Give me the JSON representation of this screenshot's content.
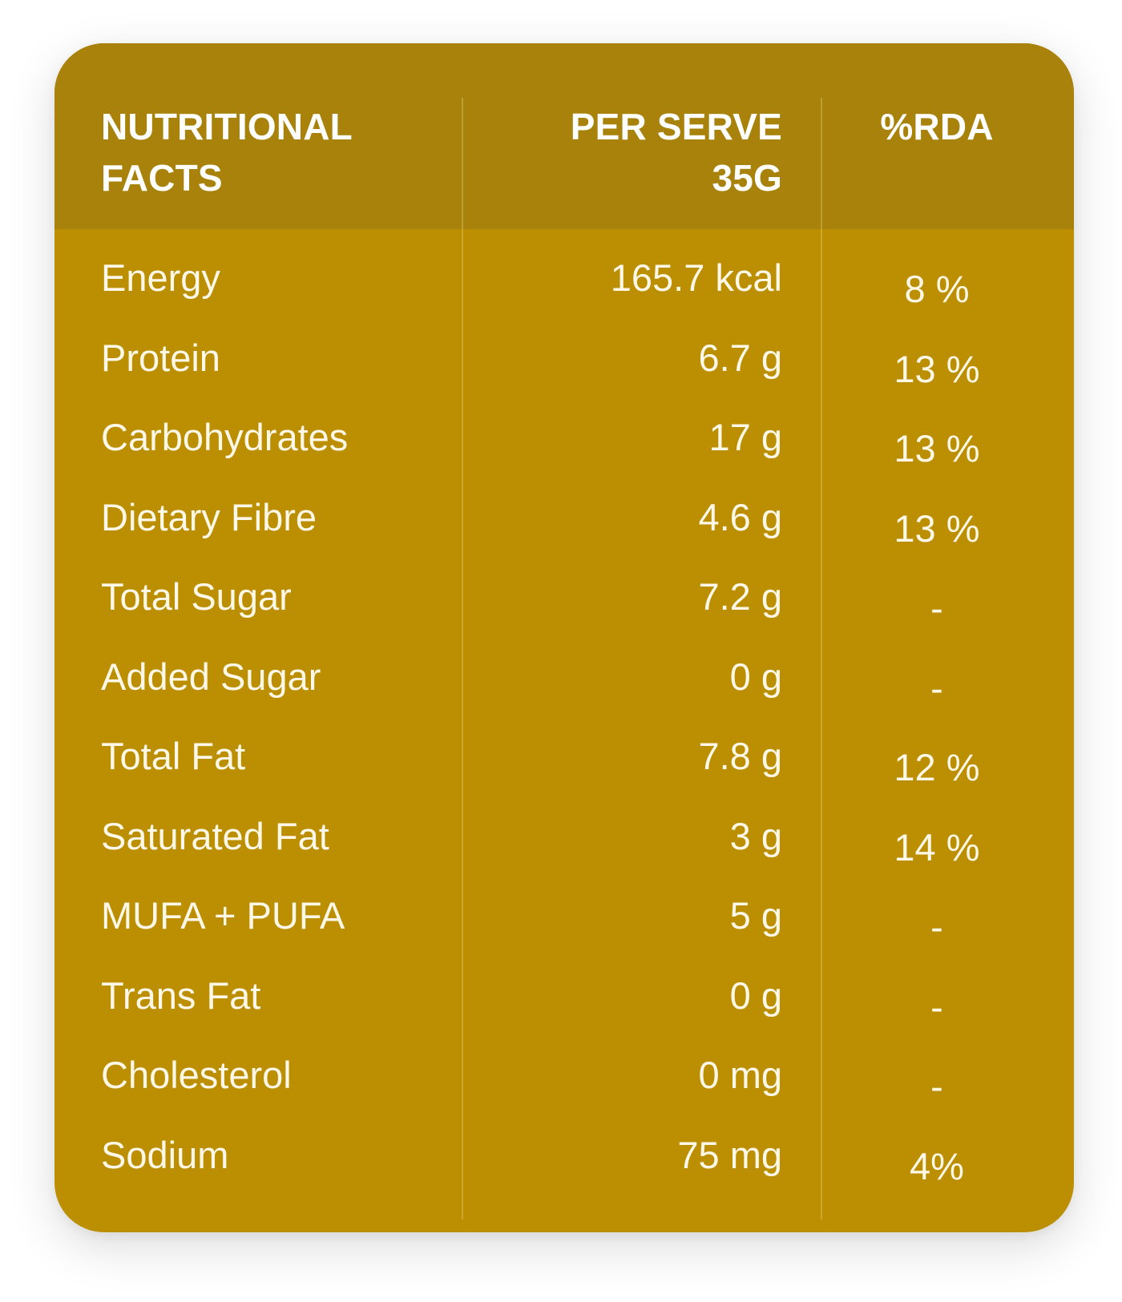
{
  "table": {
    "headers": {
      "name_line1": "NUTRITIONAL",
      "name_line2": "FACTS",
      "serve_line1": "PER SERVE",
      "serve_line2": "35G",
      "rda": "%RDA"
    },
    "rows": [
      {
        "name": "Energy",
        "value": "165.7 kcal",
        "rda": "8 %"
      },
      {
        "name": "Protein",
        "value": "6.7 g",
        "rda": "13 %"
      },
      {
        "name": "Carbohydrates",
        "value": "17 g",
        "rda": "13 %"
      },
      {
        "name": "Dietary Fibre",
        "value": "4.6 g",
        "rda": "13 %"
      },
      {
        "name": "Total Sugar",
        "value": "7.2 g",
        "rda": "-"
      },
      {
        "name": "Added Sugar",
        "value": "0 g",
        "rda": "-"
      },
      {
        "name": "Total Fat",
        "value": "7.8 g",
        "rda": "12 %"
      },
      {
        "name": "Saturated Fat",
        "value": "3 g",
        "rda": "14 %"
      },
      {
        "name": "MUFA + PUFA",
        "value": "5 g",
        "rda": "-"
      },
      {
        "name": "Trans Fat",
        "value": "0 g",
        "rda": "-"
      },
      {
        "name": "Cholesterol",
        "value": "0 mg",
        "rda": "-"
      },
      {
        "name": "Sodium",
        "value": "75 mg",
        "rda": "4%"
      }
    ]
  },
  "colors": {
    "card_body": "#bb8f01",
    "card_header": "#a8820a",
    "text": "#ffffff"
  }
}
